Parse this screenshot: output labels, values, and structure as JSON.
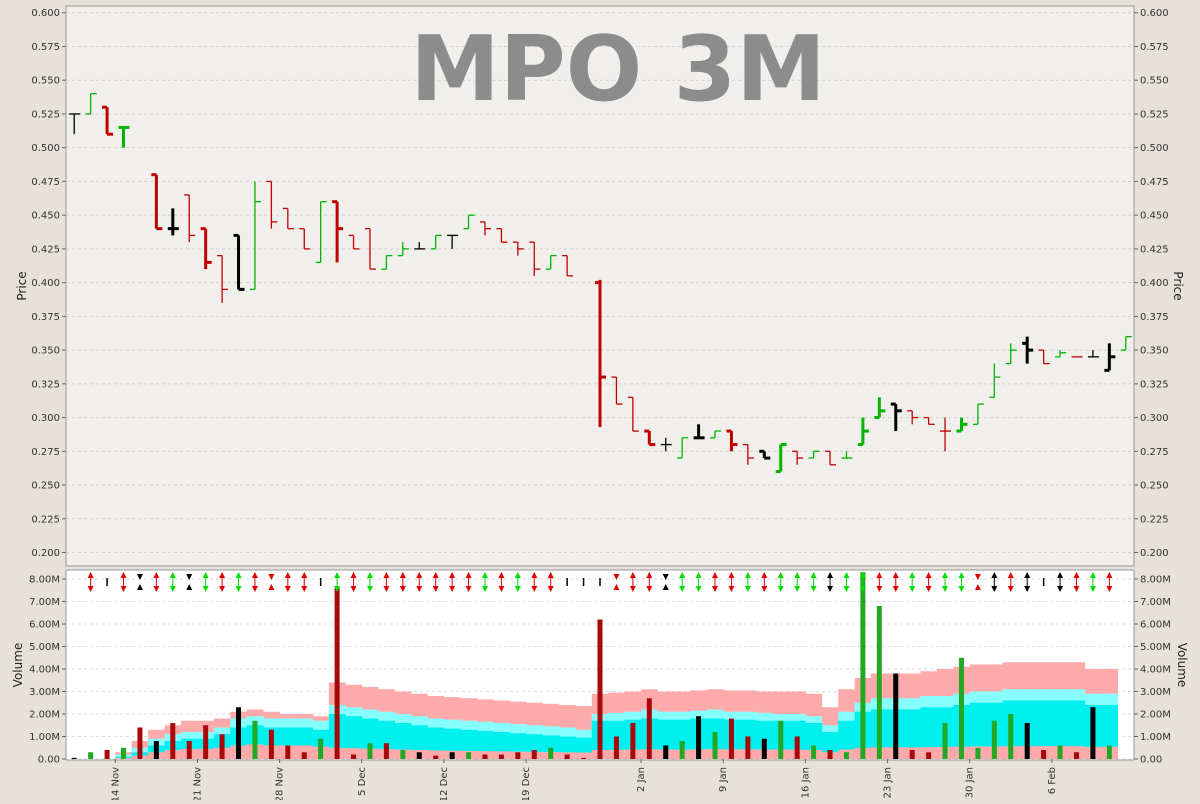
{
  "chart_data": [
    {
      "type": "ohlc",
      "title": "MPO 3M",
      "ylabel": "Price",
      "ylim": [
        0.19,
        0.605
      ],
      "y_ticks": [
        "0.200",
        "0.225",
        "0.250",
        "0.275",
        "0.300",
        "0.325",
        "0.350",
        "0.375",
        "0.400",
        "0.425",
        "0.450",
        "0.475",
        "0.500",
        "0.525",
        "0.550",
        "0.575",
        "0.600"
      ],
      "grid": true,
      "colors": {
        "up": "#00b400",
        "down": "#c00000",
        "flat": "#000000"
      },
      "bars": [
        {
          "o": 0.525,
          "h": 0.525,
          "l": 0.51,
          "c": 0.525,
          "d": "flat",
          "w": "thin"
        },
        {
          "o": 0.525,
          "h": 0.54,
          "l": 0.525,
          "c": 0.54,
          "d": "up",
          "w": "thin"
        },
        {
          "o": 0.53,
          "h": 0.53,
          "l": 0.51,
          "c": 0.51,
          "d": "down",
          "w": "thick"
        },
        {
          "o": 0.515,
          "h": 0.515,
          "l": 0.5,
          "c": 0.515,
          "d": "up",
          "w": "thick"
        },
        null,
        {
          "o": 0.48,
          "h": 0.48,
          "l": 0.44,
          "c": 0.44,
          "d": "down",
          "w": "thick"
        },
        {
          "o": 0.44,
          "h": 0.455,
          "l": 0.435,
          "c": 0.44,
          "d": "flat",
          "w": "thick"
        },
        {
          "o": 0.465,
          "h": 0.465,
          "l": 0.43,
          "c": 0.435,
          "d": "down",
          "w": "thin"
        },
        {
          "o": 0.44,
          "h": 0.44,
          "l": 0.41,
          "c": 0.415,
          "d": "down",
          "w": "thick"
        },
        {
          "o": 0.42,
          "h": 0.42,
          "l": 0.385,
          "c": 0.395,
          "d": "down",
          "w": "thin"
        },
        {
          "o": 0.435,
          "h": 0.435,
          "l": 0.395,
          "c": 0.395,
          "d": "flat",
          "w": "thick"
        },
        {
          "o": 0.395,
          "h": 0.475,
          "l": 0.395,
          "c": 0.46,
          "d": "up",
          "w": "thin"
        },
        {
          "o": 0.475,
          "h": 0.475,
          "l": 0.44,
          "c": 0.445,
          "d": "down",
          "w": "thin"
        },
        {
          "o": 0.455,
          "h": 0.455,
          "l": 0.44,
          "c": 0.44,
          "d": "down",
          "w": "thin"
        },
        {
          "o": 0.44,
          "h": 0.44,
          "l": 0.425,
          "c": 0.425,
          "d": "down",
          "w": "thin"
        },
        {
          "o": 0.415,
          "h": 0.46,
          "l": 0.415,
          "c": 0.46,
          "d": "up",
          "w": "thin"
        },
        {
          "o": 0.46,
          "h": 0.46,
          "l": 0.415,
          "c": 0.44,
          "d": "down",
          "w": "thick"
        },
        {
          "o": 0.435,
          "h": 0.435,
          "l": 0.425,
          "c": 0.425,
          "d": "down",
          "w": "thin"
        },
        {
          "o": 0.44,
          "h": 0.44,
          "l": 0.41,
          "c": 0.41,
          "d": "down",
          "w": "thin"
        },
        {
          "o": 0.41,
          "h": 0.42,
          "l": 0.41,
          "c": 0.42,
          "d": "up",
          "w": "thin"
        },
        {
          "o": 0.42,
          "h": 0.43,
          "l": 0.42,
          "c": 0.425,
          "d": "up",
          "w": "thin"
        },
        {
          "o": 0.425,
          "h": 0.43,
          "l": 0.425,
          "c": 0.425,
          "d": "flat",
          "w": "thin"
        },
        {
          "o": 0.425,
          "h": 0.435,
          "l": 0.425,
          "c": 0.435,
          "d": "up",
          "w": "thin"
        },
        {
          "o": 0.435,
          "h": 0.435,
          "l": 0.425,
          "c": 0.435,
          "d": "flat",
          "w": "thin"
        },
        {
          "o": 0.44,
          "h": 0.45,
          "l": 0.44,
          "c": 0.45,
          "d": "up",
          "w": "thin"
        },
        {
          "o": 0.445,
          "h": 0.445,
          "l": 0.435,
          "c": 0.44,
          "d": "down",
          "w": "thin"
        },
        {
          "o": 0.44,
          "h": 0.44,
          "l": 0.43,
          "c": 0.43,
          "d": "down",
          "w": "thin"
        },
        {
          "o": 0.43,
          "h": 0.43,
          "l": 0.42,
          "c": 0.425,
          "d": "down",
          "w": "thin"
        },
        {
          "o": 0.43,
          "h": 0.43,
          "l": 0.405,
          "c": 0.41,
          "d": "down",
          "w": "thin"
        },
        {
          "o": 0.41,
          "h": 0.42,
          "l": 0.41,
          "c": 0.42,
          "d": "up",
          "w": "thin"
        },
        {
          "o": 0.42,
          "h": 0.42,
          "l": 0.405,
          "c": 0.405,
          "d": "down",
          "w": "thin"
        },
        null,
        {
          "o": 0.4,
          "h": 0.402,
          "l": 0.293,
          "c": 0.33,
          "d": "down",
          "w": "thick"
        },
        {
          "o": 0.33,
          "h": 0.33,
          "l": 0.31,
          "c": 0.31,
          "d": "down",
          "w": "thin"
        },
        {
          "o": 0.315,
          "h": 0.315,
          "l": 0.29,
          "c": 0.29,
          "d": "down",
          "w": "thin"
        },
        {
          "o": 0.29,
          "h": 0.29,
          "l": 0.28,
          "c": 0.28,
          "d": "down",
          "w": "thick"
        },
        {
          "o": 0.28,
          "h": 0.285,
          "l": 0.275,
          "c": 0.28,
          "d": "flat",
          "w": "thin"
        },
        {
          "o": 0.27,
          "h": 0.285,
          "l": 0.27,
          "c": 0.285,
          "d": "up",
          "w": "thin"
        },
        {
          "o": 0.285,
          "h": 0.295,
          "l": 0.285,
          "c": 0.285,
          "d": "flat",
          "w": "thick"
        },
        {
          "o": 0.285,
          "h": 0.29,
          "l": 0.285,
          "c": 0.29,
          "d": "up",
          "w": "thin"
        },
        {
          "o": 0.29,
          "h": 0.29,
          "l": 0.275,
          "c": 0.28,
          "d": "down",
          "w": "thick"
        },
        {
          "o": 0.28,
          "h": 0.28,
          "l": 0.265,
          "c": 0.27,
          "d": "down",
          "w": "thin"
        },
        {
          "o": 0.275,
          "h": 0.275,
          "l": 0.27,
          "c": 0.27,
          "d": "flat",
          "w": "thick"
        },
        {
          "o": 0.26,
          "h": 0.28,
          "l": 0.26,
          "c": 0.28,
          "d": "up",
          "w": "thick"
        },
        {
          "o": 0.275,
          "h": 0.275,
          "l": 0.265,
          "c": 0.27,
          "d": "down",
          "w": "thin"
        },
        {
          "o": 0.27,
          "h": 0.275,
          "l": 0.27,
          "c": 0.275,
          "d": "up",
          "w": "thin"
        },
        {
          "o": 0.275,
          "h": 0.275,
          "l": 0.265,
          "c": 0.265,
          "d": "down",
          "w": "thin"
        },
        {
          "o": 0.27,
          "h": 0.275,
          "l": 0.27,
          "c": 0.27,
          "d": "up",
          "w": "thin"
        },
        {
          "o": 0.28,
          "h": 0.3,
          "l": 0.28,
          "c": 0.29,
          "d": "up",
          "w": "thick"
        },
        {
          "o": 0.3,
          "h": 0.315,
          "l": 0.3,
          "c": 0.305,
          "d": "up",
          "w": "thick"
        },
        {
          "o": 0.31,
          "h": 0.31,
          "l": 0.29,
          "c": 0.305,
          "d": "flat",
          "w": "thick"
        },
        {
          "o": 0.305,
          "h": 0.305,
          "l": 0.295,
          "c": 0.3,
          "d": "down",
          "w": "thin"
        },
        {
          "o": 0.3,
          "h": 0.3,
          "l": 0.295,
          "c": 0.295,
          "d": "down",
          "w": "thin"
        },
        {
          "o": 0.29,
          "h": 0.3,
          "l": 0.275,
          "c": 0.29,
          "d": "down",
          "w": "thin"
        },
        {
          "o": 0.29,
          "h": 0.3,
          "l": 0.29,
          "c": 0.295,
          "d": "up",
          "w": "thick"
        },
        {
          "o": 0.295,
          "h": 0.31,
          "l": 0.295,
          "c": 0.31,
          "d": "up",
          "w": "thin"
        },
        {
          "o": 0.315,
          "h": 0.34,
          "l": 0.315,
          "c": 0.33,
          "d": "up",
          "w": "thin"
        },
        {
          "o": 0.34,
          "h": 0.355,
          "l": 0.34,
          "c": 0.35,
          "d": "up",
          "w": "thin"
        },
        {
          "o": 0.355,
          "h": 0.36,
          "l": 0.34,
          "c": 0.35,
          "d": "flat",
          "w": "thick"
        },
        {
          "o": 0.35,
          "h": 0.35,
          "l": 0.34,
          "c": 0.34,
          "d": "down",
          "w": "thin"
        },
        {
          "o": 0.345,
          "h": 0.35,
          "l": 0.345,
          "c": 0.348,
          "d": "up",
          "w": "thin"
        },
        {
          "o": 0.345,
          "h": 0.345,
          "l": 0.345,
          "c": 0.345,
          "d": "down",
          "w": "thin"
        },
        {
          "o": 0.345,
          "h": 0.35,
          "l": 0.345,
          "c": 0.345,
          "d": "flat",
          "w": "thin"
        },
        {
          "o": 0.335,
          "h": 0.355,
          "l": 0.335,
          "c": 0.345,
          "d": "flat",
          "w": "thick"
        },
        {
          "o": 0.35,
          "h": 0.36,
          "l": 0.35,
          "c": 0.36,
          "d": "up",
          "w": "thin"
        }
      ]
    },
    {
      "type": "bar",
      "ylabel": "Volume",
      "ylim": [
        0,
        8400000
      ],
      "y_ticks": [
        "0.00",
        "1.00M",
        "2.00M",
        "3.00M",
        "4.00M",
        "5.00M",
        "6.00M",
        "7.00M",
        "8.00M"
      ],
      "x_ticks": [
        {
          "label": "14 Nov",
          "i": 3
        },
        {
          "label": "21 Nov",
          "i": 8
        },
        {
          "label": "28 Nov",
          "i": 13
        },
        {
          "label": "5 Dec",
          "i": 18
        },
        {
          "label": "12 Dec",
          "i": 23
        },
        {
          "label": "19 Dec",
          "i": 28
        },
        {
          "label": "2 Jan",
          "i": 35
        },
        {
          "label": "9 Jan",
          "i": 40
        },
        {
          "label": "16 Jan",
          "i": 45
        },
        {
          "label": "23 Jan",
          "i": 50
        },
        {
          "label": "30 Jan",
          "i": 55
        },
        {
          "label": "6 Feb",
          "i": 60
        }
      ],
      "colors": {
        "up": "#22a822",
        "down": "#a80808",
        "flat": "#000000",
        "band_outer": "#ffaaaa",
        "band_mid": "#88ffff",
        "band_inner": "#00f0f0",
        "band_base": "#ffaaaa"
      },
      "volume": [
        50000,
        300000,
        400000,
        500000,
        1400000,
        800000,
        1600000,
        800000,
        1500000,
        1100000,
        2300000,
        1700000,
        1300000,
        600000,
        300000,
        900000,
        7600000,
        200000,
        700000,
        700000,
        400000,
        300000,
        150000,
        300000,
        300000,
        200000,
        200000,
        300000,
        400000,
        500000,
        200000,
        50000,
        6200000,
        1000000,
        1600000,
        2700000,
        600000,
        800000,
        1900000,
        1200000,
        1800000,
        1000000,
        900000,
        1700000,
        1000000,
        600000,
        400000,
        300000,
        8300000,
        6800000,
        3800000,
        400000,
        300000,
        1600000,
        4500000,
        500000,
        1700000,
        2000000,
        1600000,
        400000,
        600000,
        300000,
        2300000,
        600000
      ],
      "vol_dir": [
        "flat",
        "up",
        "down",
        "up",
        "down",
        "flat",
        "down",
        "down",
        "down",
        "down",
        "flat",
        "up",
        "down",
        "down",
        "down",
        "up",
        "down",
        "down",
        "up",
        "down",
        "up",
        "flat",
        "down",
        "flat",
        "up",
        "down",
        "down",
        "down",
        "down",
        "up",
        "down",
        "down",
        "down",
        "down",
        "down",
        "down",
        "flat",
        "up",
        "flat",
        "up",
        "down",
        "down",
        "flat",
        "up",
        "down",
        "up",
        "down",
        "up",
        "up",
        "up",
        "flat",
        "down",
        "down",
        "up",
        "up",
        "up",
        "up",
        "up",
        "flat",
        "down",
        "up",
        "down",
        "flat",
        "up"
      ],
      "band_upper": [
        0,
        0,
        0,
        300000,
        800000,
        1300000,
        1500000,
        1700000,
        1700000,
        1800000,
        2100000,
        2200000,
        2100000,
        2000000,
        2000000,
        1900000,
        3400000,
        3300000,
        3200000,
        3100000,
        3000000,
        2900000,
        2800000,
        2750000,
        2700000,
        2650000,
        2600000,
        2550000,
        2500000,
        2450000,
        2400000,
        2350000,
        2900000,
        2950000,
        3000000,
        3100000,
        3000000,
        3000000,
        3050000,
        3100000,
        3050000,
        3050000,
        3000000,
        3000000,
        3000000,
        2900000,
        2300000,
        3100000,
        3600000,
        3800000,
        3800000,
        3800000,
        3900000,
        4000000,
        4100000,
        4200000,
        4200000,
        4300000,
        4300000,
        4300000,
        4300000,
        4300000,
        4000000,
        4000000
      ],
      "band_mid": [
        0,
        0,
        0,
        200000,
        500000,
        900000,
        1100000,
        1200000,
        1200000,
        1400000,
        1800000,
        1900000,
        1800000,
        1800000,
        1800000,
        1700000,
        2400000,
        2300000,
        2200000,
        2100000,
        2000000,
        1900000,
        1800000,
        1750000,
        1700000,
        1650000,
        1600000,
        1550000,
        1500000,
        1450000,
        1400000,
        1300000,
        2000000,
        2050000,
        2100000,
        2200000,
        2100000,
        2100000,
        2150000,
        2200000,
        2100000,
        2100000,
        2050000,
        2000000,
        2000000,
        1900000,
        1500000,
        2100000,
        2500000,
        2700000,
        2700000,
        2700000,
        2800000,
        2800000,
        2900000,
        3000000,
        3000000,
        3100000,
        3100000,
        3100000,
        3100000,
        3100000,
        2900000,
        2900000
      ],
      "band_inner": [
        0,
        0,
        0,
        100000,
        300000,
        600000,
        800000,
        900000,
        900000,
        1100000,
        1400000,
        1500000,
        1400000,
        1400000,
        1400000,
        1300000,
        2000000,
        1900000,
        1800000,
        1700000,
        1600000,
        1500000,
        1400000,
        1350000,
        1300000,
        1250000,
        1200000,
        1150000,
        1100000,
        1050000,
        1000000,
        950000,
        1700000,
        1700000,
        1750000,
        1800000,
        1750000,
        1750000,
        1800000,
        1800000,
        1750000,
        1750000,
        1700000,
        1700000,
        1700000,
        1600000,
        1200000,
        1700000,
        2100000,
        2200000,
        2200000,
        2200000,
        2300000,
        2300000,
        2400000,
        2500000,
        2500000,
        2600000,
        2600000,
        2600000,
        2600000,
        2600000,
        2400000,
        2400000
      ],
      "band_base": [
        0,
        0,
        0,
        50000,
        150000,
        300000,
        400000,
        450000,
        450000,
        500000,
        600000,
        650000,
        600000,
        600000,
        600000,
        550000,
        500000,
        480000,
        460000,
        440000,
        420000,
        400000,
        380000,
        370000,
        360000,
        350000,
        340000,
        330000,
        320000,
        310000,
        300000,
        290000,
        400000,
        410000,
        420000,
        430000,
        420000,
        420000,
        430000,
        440000,
        430000,
        430000,
        420000,
        420000,
        420000,
        400000,
        300000,
        420000,
        500000,
        520000,
        520000,
        520000,
        530000,
        540000,
        550000,
        560000,
        560000,
        570000,
        570000,
        570000,
        570000,
        570000,
        540000,
        540000
      ],
      "indicators": [
        "none",
        "double-red",
        "flat",
        "double-red",
        "hourglass",
        "double-red",
        "double-green",
        "hourglass",
        "double-green",
        "double-red",
        "double-green",
        "double-red",
        "hourglass-red",
        "double-red",
        "double-red",
        "flat",
        "double-green",
        "double-red",
        "double-green",
        "double-red",
        "double-red",
        "double-red",
        "double-red",
        "double-red",
        "double-red",
        "double-green",
        "double-red",
        "double-green",
        "double-red",
        "double-red",
        "flat",
        "flat",
        "flat",
        "hourglass-red",
        "double-red",
        "double-red",
        "hourglass",
        "double-green",
        "double-green",
        "double-red",
        "double-red",
        "double-green",
        "double-red",
        "double-green",
        "double-green",
        "double-green",
        "double-black",
        "double-green",
        "double-green",
        "double-red",
        "double-red",
        "double-green",
        "double-red",
        "double-green",
        "double-green",
        "hourglass-red",
        "double-black",
        "double-red",
        "double-black",
        "flat",
        "double-black",
        "double-red",
        "double-green",
        "double-red"
      ]
    }
  ]
}
